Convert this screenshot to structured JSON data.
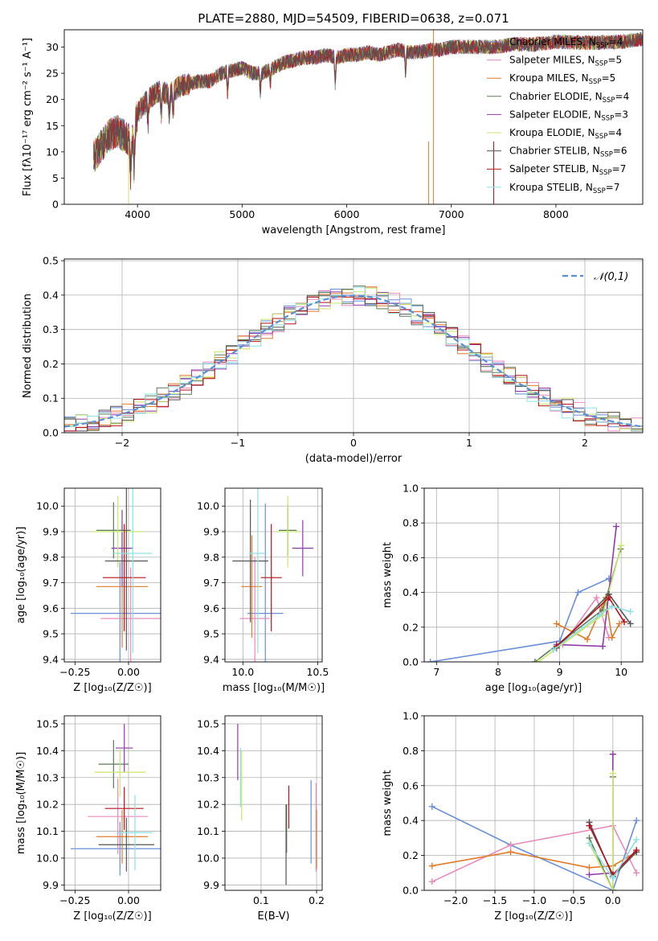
{
  "figure_title": "PLATE=2880, MJD=54509, FIBERID=0638, z=0.071",
  "colors": {
    "Chabrier MILES": "#6a8fd8",
    "Salpeter MILES": "#e88aba",
    "Kroupa MILES": "#e07b2a",
    "Chabrier ELODIE": "#5b7a5b",
    "Salpeter ELODIE": "#8e3cab",
    "Kroupa ELODIE": "#c9e66b",
    "Chabrier STELIB": "#555555",
    "Salpeter STELIB": "#b5121b",
    "Kroupa STELIB": "#8fe0e0",
    "normal_line": "#5b8fd6"
  },
  "legend": [
    {
      "name": "Chabrier MILES",
      "base": "Chabrier MILES, N",
      "sub": "SSP",
      "tail": "=4"
    },
    {
      "name": "Salpeter MILES",
      "base": "Salpeter MILES, N",
      "sub": "SSP",
      "tail": "=5"
    },
    {
      "name": "Kroupa MILES",
      "base": "Kroupa MILES, N",
      "sub": "SSP",
      "tail": "=5"
    },
    {
      "name": "Chabrier ELODIE",
      "base": "Chabrier ELODIE, N",
      "sub": "SSP",
      "tail": "=4"
    },
    {
      "name": "Salpeter ELODIE",
      "base": "Salpeter ELODIE, N",
      "sub": "SSP",
      "tail": "=3"
    },
    {
      "name": "Kroupa ELODIE",
      "base": "Kroupa ELODIE, N",
      "sub": "SSP",
      "tail": "=4"
    },
    {
      "name": "Chabrier STELIB",
      "base": "Chabrier STELIB, N",
      "sub": "SSP",
      "tail": "=6"
    },
    {
      "name": "Salpeter STELIB",
      "base": "Salpeter STELIB, N",
      "sub": "SSP",
      "tail": "=7"
    },
    {
      "name": "Kroupa STELIB",
      "base": "Kroupa STELIB, N",
      "sub": "SSP",
      "tail": "=7"
    }
  ],
  "chart_data": [
    {
      "id": "spectrum",
      "type": "line",
      "xlabel": "wavelength [Angstrom, rest frame]",
      "ylabel": "Flux [fλ10⁻¹⁷ erg cm⁻² s⁻¹ A⁻¹]",
      "xlim": [
        3300,
        8830
      ],
      "ylim": [
        0,
        33.3
      ],
      "xticks": [
        4000,
        5000,
        6000,
        7000,
        8000
      ],
      "yticks": [
        0,
        5,
        10,
        15,
        20,
        25,
        30
      ],
      "continuum": [
        [
          3580,
          9
        ],
        [
          3650,
          11
        ],
        [
          3720,
          13
        ],
        [
          3800,
          14
        ],
        [
          3880,
          13
        ],
        [
          3950,
          12
        ],
        [
          4000,
          17.5
        ],
        [
          4100,
          20
        ],
        [
          4200,
          21.5
        ],
        [
          4300,
          21
        ],
        [
          4400,
          22.5
        ],
        [
          4500,
          23
        ],
        [
          4600,
          23.5
        ],
        [
          4700,
          23.5
        ],
        [
          4800,
          25
        ],
        [
          4900,
          25.5
        ],
        [
          5000,
          26
        ],
        [
          5100,
          25
        ],
        [
          5200,
          25
        ],
        [
          5300,
          26
        ],
        [
          5400,
          27
        ],
        [
          5500,
          27.5
        ],
        [
          5600,
          28
        ],
        [
          5700,
          28
        ],
        [
          5800,
          28.5
        ],
        [
          5900,
          28
        ],
        [
          6000,
          28.5
        ],
        [
          6100,
          28.5
        ],
        [
          6200,
          29
        ],
        [
          6300,
          28.5
        ],
        [
          6400,
          29
        ],
        [
          6500,
          29.5
        ],
        [
          6600,
          29
        ],
        [
          6700,
          29
        ],
        [
          6800,
          29.5
        ],
        [
          6900,
          29.5
        ],
        [
          7000,
          30
        ],
        [
          7200,
          30
        ],
        [
          7400,
          30
        ],
        [
          7600,
          30.5
        ],
        [
          7800,
          30.5
        ],
        [
          8000,
          31
        ],
        [
          8300,
          30.8
        ],
        [
          8600,
          31
        ],
        [
          8830,
          31.5
        ]
      ],
      "absorption_features": [
        [
          3933,
          5
        ],
        [
          3968,
          6
        ],
        [
          4101,
          15
        ],
        [
          4227,
          17
        ],
        [
          4304,
          17
        ],
        [
          4340,
          17
        ],
        [
          4861,
          21
        ],
        [
          5175,
          21
        ],
        [
          5270,
          23
        ],
        [
          5890,
          23
        ],
        [
          6563,
          25
        ]
      ],
      "sky_lines": [
        [
          3915,
          0
        ],
        [
          6784,
          0
        ],
        [
          7405,
          0
        ],
        [
          6830,
          33.3
        ]
      ]
    },
    {
      "id": "residual_histogram",
      "type": "histogram",
      "xlabel": "(data-model)/error",
      "ylabel": "Normed distribution",
      "xlim": [
        -2.5,
        2.5
      ],
      "ylim": [
        0,
        0.505
      ],
      "xticks": [
        -2,
        -1,
        0,
        1,
        2
      ],
      "yticks": [
        0,
        0.1,
        0.2,
        0.3,
        0.4,
        0.5
      ],
      "legend_entry": "𝒩(0,1)",
      "bin_width": 0.1,
      "bin_start": -2.5
    },
    {
      "id": "age_vs_Z",
      "type": "scatter",
      "xlabel": "Z [log₁₀(Z/Z☉)]",
      "ylabel": "age  [log₁₀(age/yr)]",
      "xlim": [
        -0.3,
        0.15
      ],
      "ylim": [
        9.39,
        10.07
      ],
      "xticks": [
        -0.25,
        0.0
      ],
      "xticklabels": [
        "−0.25",
        "0.00"
      ],
      "yticks": [
        9.4,
        9.5,
        9.6,
        9.7,
        9.8,
        9.9,
        10.0
      ],
      "points": [
        {
          "series": "Chabrier MILES",
          "x": -0.04,
          "xerr": 0.23,
          "y": 9.58,
          "yerr": 0.2
        },
        {
          "series": "Salpeter MILES",
          "x": 0.01,
          "xerr": 0.14,
          "y": 9.56,
          "yerr": 0.2
        },
        {
          "series": "Kroupa MILES",
          "x": -0.03,
          "xerr": 0.12,
          "y": 9.685,
          "yerr": 0.24
        },
        {
          "series": "Chabrier ELODIE",
          "x": -0.07,
          "xerr": 0.08,
          "y": 9.905,
          "yerr": 0.11
        },
        {
          "series": "Salpeter ELODIE",
          "x": -0.03,
          "xerr": 0.05,
          "y": 9.835,
          "yerr": 0.15
        },
        {
          "series": "Kroupa ELODIE",
          "x": -0.05,
          "xerr": 0.12,
          "y": 9.9,
          "yerr": 0.14
        },
        {
          "series": "Chabrier STELIB",
          "x": -0.01,
          "xerr": 0.1,
          "y": 9.785,
          "yerr": 0.35
        },
        {
          "series": "Salpeter STELIB",
          "x": -0.02,
          "xerr": 0.1,
          "y": 9.72,
          "yerr": 0.21
        },
        {
          "series": "Kroupa STELIB",
          "x": 0.02,
          "xerr": 0.09,
          "y": 9.815,
          "yerr": 0.39
        }
      ]
    },
    {
      "id": "age_vs_mass",
      "type": "scatter",
      "xlabel": "mass [log₁₀(M/M☉)]",
      "xlim": [
        9.88,
        10.53
      ],
      "ylim": [
        9.39,
        10.07
      ],
      "xticks": [
        10.0,
        10.5
      ],
      "xticklabels": [
        "10.0",
        "10.5"
      ],
      "yticks": [
        9.4,
        9.5,
        9.6,
        9.7,
        9.8,
        9.9,
        10.0
      ],
      "points": [
        {
          "series": "Chabrier MILES",
          "x": 10.15,
          "xerr": 0.12,
          "y": 9.58,
          "yerr": 0.43
        },
        {
          "series": "Salpeter MILES",
          "x": 10.08,
          "xerr": 0.1,
          "y": 9.56,
          "yerr": 0.24
        },
        {
          "series": "Kroupa MILES",
          "x": 10.06,
          "xerr": 0.07,
          "y": 9.685,
          "yerr": 0.2
        },
        {
          "series": "Chabrier ELODIE",
          "x": 10.3,
          "xerr": 0.06,
          "y": 9.905,
          "yerr": 0.1
        },
        {
          "series": "Salpeter ELODIE",
          "x": 10.4,
          "xerr": 0.07,
          "y": 9.835,
          "yerr": 0.11
        },
        {
          "series": "Kroupa ELODIE",
          "x": 10.3,
          "xerr": 0.08,
          "y": 9.9,
          "yerr": 0.14
        },
        {
          "series": "Chabrier STELIB",
          "x": 10.05,
          "xerr": 0.12,
          "y": 9.785,
          "yerr": 0.24
        },
        {
          "series": "Salpeter STELIB",
          "x": 10.19,
          "xerr": 0.07,
          "y": 9.72,
          "yerr": 0.21
        },
        {
          "series": "Kroupa STELIB",
          "x": 10.1,
          "xerr": 0.06,
          "y": 9.815,
          "yerr": 0.39
        }
      ]
    },
    {
      "id": "mass_weight_vs_age",
      "type": "line",
      "xlabel": "age  [log₁₀(age/yr)]",
      "ylabel": "mass weight",
      "xlim": [
        6.8,
        10.35
      ],
      "ylim": [
        0,
        1
      ],
      "xticks": [
        7,
        8,
        9,
        10
      ],
      "yticks": [
        0,
        0.2,
        0.4,
        0.6,
        0.8,
        1.0
      ],
      "series": [
        {
          "name": "Chabrier MILES",
          "points": [
            [
              6.9,
              0
            ],
            [
              9.0,
              0.12
            ],
            [
              9.3,
              0.4
            ],
            [
              9.8,
              0.48
            ]
          ]
        },
        {
          "name": "Salpeter MILES",
          "points": [
            [
              9.05,
              0.1
            ],
            [
              9.6,
              0.37
            ],
            [
              9.8,
              0.14
            ]
          ]
        },
        {
          "name": "Kroupa MILES",
          "points": [
            [
              8.95,
              0.22
            ],
            [
              9.45,
              0.13
            ],
            [
              9.75,
              0.37
            ],
            [
              9.85,
              0.14
            ],
            [
              9.97,
              0.22
            ]
          ]
        },
        {
          "name": "Chabrier ELODIE",
          "points": [
            [
              8.6,
              0
            ],
            [
              9.7,
              0.3
            ],
            [
              9.99,
              0.65
            ]
          ]
        },
        {
          "name": "Salpeter ELODIE",
          "points": [
            [
              8.95,
              0.1
            ],
            [
              9.7,
              0.09
            ],
            [
              9.92,
              0.78
            ]
          ]
        },
        {
          "name": "Kroupa ELODIE",
          "points": [
            [
              8.65,
              0
            ],
            [
              9.7,
              0.27
            ],
            [
              10.0,
              0.67
            ]
          ]
        },
        {
          "name": "Chabrier STELIB",
          "points": [
            [
              8.95,
              0.08
            ],
            [
              9.8,
              0.39
            ],
            [
              10.15,
              0.22
            ]
          ]
        },
        {
          "name": "Salpeter STELIB",
          "points": [
            [
              8.95,
              0.09
            ],
            [
              9.8,
              0.37
            ],
            [
              10.05,
              0.23
            ]
          ]
        },
        {
          "name": "Kroupa STELIB",
          "points": [
            [
              8.9,
              0.07
            ],
            [
              9.65,
              0.27
            ],
            [
              9.85,
              0.32
            ],
            [
              10.15,
              0.29
            ]
          ]
        }
      ]
    },
    {
      "id": "mass_vs_Z",
      "type": "scatter",
      "xlabel": "Z [log₁₀(Z/Z☉)]",
      "ylabel": "mass [log₁₀(M/M☉)]",
      "xlim": [
        -0.3,
        0.15
      ],
      "ylim": [
        9.88,
        10.53
      ],
      "xticks": [
        -0.25,
        0.0
      ],
      "xticklabels": [
        "−0.25",
        "0.00"
      ],
      "yticks": [
        9.9,
        10.0,
        10.1,
        10.2,
        10.3,
        10.4,
        10.5
      ],
      "points": [
        {
          "series": "Chabrier MILES",
          "x": -0.04,
          "xerr": 0.23,
          "y": 10.035,
          "yerr": 0.1
        },
        {
          "series": "Salpeter MILES",
          "x": -0.05,
          "xerr": 0.14,
          "y": 10.155,
          "yerr": 0.14
        },
        {
          "series": "Kroupa MILES",
          "x": -0.03,
          "xerr": 0.12,
          "y": 10.08,
          "yerr": 0.1
        },
        {
          "series": "Chabrier ELODIE",
          "x": -0.07,
          "xerr": 0.07,
          "y": 10.35,
          "yerr": 0.09
        },
        {
          "series": "Salpeter ELODIE",
          "x": -0.02,
          "xerr": 0.04,
          "y": 10.41,
          "yerr": 0.09
        },
        {
          "series": "Kroupa ELODIE",
          "x": -0.04,
          "xerr": 0.12,
          "y": 10.32,
          "yerr": 0.09
        },
        {
          "series": "Chabrier STELIB",
          "x": -0.01,
          "xerr": 0.13,
          "y": 10.05,
          "yerr": 0.1
        },
        {
          "series": "Salpeter STELIB",
          "x": -0.02,
          "xerr": 0.09,
          "y": 10.185,
          "yerr": 0.08
        },
        {
          "series": "Kroupa STELIB",
          "x": 0.03,
          "xerr": 0.08,
          "y": 10.095,
          "yerr": 0.14
        }
      ]
    },
    {
      "id": "mass_vs_ebv",
      "type": "scatter",
      "xlabel": "E(B-V)",
      "xlim": [
        0.035,
        0.21
      ],
      "ylim": [
        9.88,
        10.53
      ],
      "xticks": [
        0.1,
        0.2
      ],
      "xticklabels": [
        "0.1",
        "0.2"
      ],
      "yticks": [
        9.9,
        10.0,
        10.1,
        10.2,
        10.3,
        10.4,
        10.5
      ],
      "points": [
        {
          "series": "Chabrier MILES",
          "x": 0.19,
          "xerr": 0,
          "y": 10.135,
          "yerr": 0.155
        },
        {
          "series": "Salpeter MILES",
          "x": 0.199,
          "xerr": 0,
          "y": 10.115,
          "yerr": 0.165
        },
        {
          "series": "Kroupa MILES",
          "x": 0.2,
          "xerr": 0,
          "y": 10.07,
          "yerr": 0.11
        },
        {
          "series": "Chabrier ELODIE",
          "x": 0.146,
          "xerr": 0,
          "y": 10.11,
          "yerr": 0.09
        },
        {
          "series": "Salpeter ELODIE",
          "x": 0.058,
          "xerr": 0,
          "y": 10.395,
          "yerr": 0.105
        },
        {
          "series": "Kroupa ELODIE",
          "x": 0.065,
          "xerr": 0,
          "y": 10.27,
          "yerr": 0.13
        },
        {
          "series": "Chabrier STELIB",
          "x": 0.145,
          "xerr": 0,
          "y": 10.05,
          "yerr": 0.15
        },
        {
          "series": "Salpeter STELIB",
          "x": 0.15,
          "xerr": 0,
          "y": 10.19,
          "yerr": 0.08
        },
        {
          "series": "Kroupa STELIB",
          "x": 0.063,
          "xerr": 0,
          "y": 10.3,
          "yerr": 0.11
        }
      ]
    },
    {
      "id": "mass_weight_vs_Z",
      "type": "line",
      "xlabel": "Z [log₁₀(Z/Z☉)]",
      "ylabel": "mass weight",
      "xlim": [
        -2.4,
        0.38
      ],
      "ylim": [
        0,
        1
      ],
      "xticks": [
        -2.0,
        -1.5,
        -1.0,
        -0.5,
        0.0
      ],
      "xticklabels": [
        "−2.0",
        "−1.5",
        "−1.0",
        "−0.5",
        "0.0"
      ],
      "yticks": [
        0,
        0.2,
        0.4,
        0.6,
        0.8,
        1.0
      ],
      "series": [
        {
          "name": "Chabrier MILES",
          "points": [
            [
              -2.3,
              0.48
            ],
            [
              -1.3,
              0.26
            ],
            [
              0.0,
              0.0
            ],
            [
              0.3,
              0.4
            ]
          ]
        },
        {
          "name": "Salpeter MILES",
          "points": [
            [
              -2.3,
              0.05
            ],
            [
              -1.3,
              0.26
            ],
            [
              0.0,
              0.37
            ],
            [
              0.3,
              0.1
            ]
          ]
        },
        {
          "name": "Kroupa MILES",
          "points": [
            [
              -2.3,
              0.14
            ],
            [
              -1.3,
              0.22
            ],
            [
              -0.3,
              0.13
            ],
            [
              0.0,
              0.14
            ],
            [
              0.3,
              0.22
            ]
          ]
        },
        {
          "name": "Chabrier ELODIE",
          "points": [
            [
              -0.3,
              0.3
            ],
            [
              0.0,
              0.0
            ],
            [
              0.0,
              0.65
            ]
          ]
        },
        {
          "name": "Salpeter ELODIE",
          "points": [
            [
              -0.3,
              0.09
            ],
            [
              0.0,
              0.1
            ],
            [
              0.0,
              0.78
            ]
          ]
        },
        {
          "name": "Kroupa ELODIE",
          "points": [
            [
              -0.3,
              0.27
            ],
            [
              0.0,
              0.0
            ],
            [
              0.0,
              0.67
            ]
          ]
        },
        {
          "name": "Chabrier STELIB",
          "points": [
            [
              -0.3,
              0.39
            ],
            [
              0.0,
              0.08
            ],
            [
              0.3,
              0.22
            ]
          ]
        },
        {
          "name": "Salpeter STELIB",
          "points": [
            [
              -0.3,
              0.37
            ],
            [
              0.0,
              0.09
            ],
            [
              0.3,
              0.23
            ]
          ]
        },
        {
          "name": "Kroupa STELIB",
          "points": [
            [
              -0.3,
              0.27
            ],
            [
              0.0,
              0.07
            ],
            [
              0.3,
              0.29
            ]
          ]
        }
      ]
    }
  ]
}
